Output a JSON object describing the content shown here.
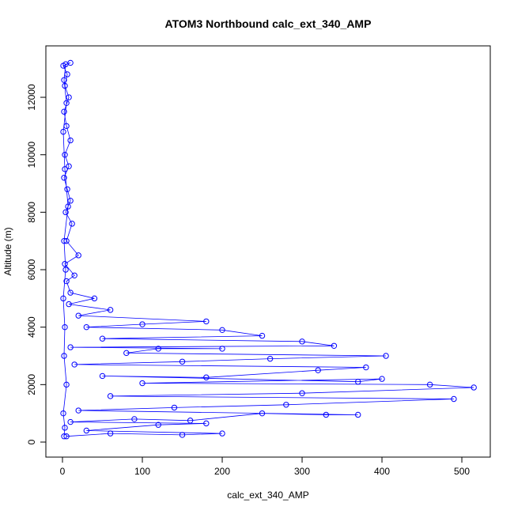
{
  "chart_data": {
    "type": "scatter",
    "title": "ATOM3 Northbound calc_ext_340_AMP",
    "x_label": "calc_ext_340_AMP",
    "y_label": "Altitude (m)",
    "color": "#0000ff",
    "lines": true,
    "xlim": [
      -20.8,
      535.6
    ],
    "ylim": [
      -523,
      13790
    ],
    "xticks": [
      0,
      100,
      200,
      300,
      400,
      500
    ],
    "yticks": [
      0,
      2000,
      4000,
      6000,
      8000,
      10000,
      12000
    ],
    "x": [
      5,
      60,
      150,
      200,
      30,
      120,
      180,
      10,
      90,
      160,
      250,
      330,
      370,
      20,
      140,
      280,
      490,
      60,
      300,
      515,
      460,
      100,
      400,
      370,
      50,
      180,
      320,
      380,
      15,
      150,
      260,
      405,
      80,
      120,
      200,
      10,
      340,
      300,
      50,
      250,
      200,
      30,
      100,
      180,
      20,
      60,
      8,
      40,
      10,
      5,
      15,
      3,
      20,
      5,
      12,
      4,
      10,
      6,
      2,
      8,
      3,
      10,
      5,
      2,
      8,
      3,
      6,
      1,
      10,
      4,
      2,
      5,
      1,
      3,
      7,
      2,
      4,
      1,
      3,
      2,
      5,
      1,
      3,
      2
    ],
    "y": [
      200,
      300,
      250,
      300,
      400,
      600,
      650,
      700,
      800,
      750,
      1000,
      950,
      950,
      1100,
      1200,
      1300,
      1500,
      1600,
      1700,
      1900,
      2000,
      2050,
      2200,
      2100,
      2300,
      2250,
      2500,
      2600,
      2700,
      2800,
      2900,
      3000,
      3100,
      3250,
      3250,
      3300,
      3350,
      3500,
      3600,
      3700,
      3900,
      4000,
      4100,
      4200,
      4400,
      4600,
      4800,
      5000,
      5200,
      5600,
      5800,
      6200,
      6500,
      7000,
      7600,
      8000,
      8400,
      8800,
      9200,
      9600,
      10000,
      10500,
      11000,
      11500,
      12000,
      12400,
      12800,
      13100,
      13200,
      13150,
      12600,
      11800,
      10800,
      9500,
      8200,
      7000,
      6000,
      5000,
      4000,
      3000,
      2000,
      1000,
      500,
      200
    ]
  }
}
